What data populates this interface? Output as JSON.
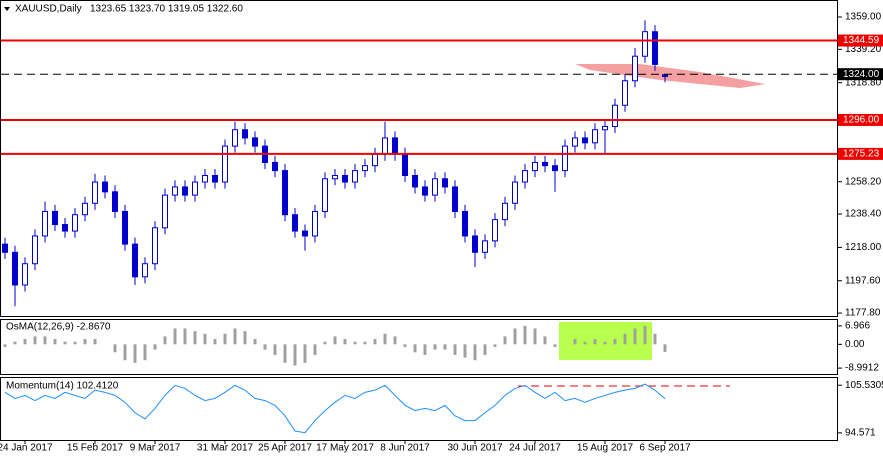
{
  "chart_data": [
    {
      "type": "candlestick",
      "title": "XAUUSD,Daily",
      "subtitle": "1323.65 1323.70 1319.05 1322.60",
      "color": "#0000cc",
      "categories": [
        null,
        null,
        "24 Jan 2017",
        null,
        null,
        null,
        null,
        null,
        null,
        "15 Feb 2017",
        null,
        null,
        null,
        null,
        null,
        "9 Mar 2017",
        null,
        null,
        null,
        null,
        null,
        null,
        "31 Mar 2017",
        null,
        null,
        null,
        null,
        null,
        "25 Apr 2017",
        null,
        null,
        null,
        null,
        null,
        "17 May 2017",
        null,
        null,
        null,
        null,
        null,
        "8 Jun 2017",
        null,
        null,
        null,
        null,
        null,
        null,
        "30 Jun 2017",
        null,
        null,
        null,
        null,
        null,
        "24 Jul 2017",
        null,
        null,
        null,
        null,
        null,
        null,
        "15 Aug 2017",
        null,
        null,
        null,
        null,
        null,
        "6 Sep 2017"
      ],
      "open": [
        1220,
        1215,
        1195,
        1208,
        1225,
        1240,
        1232,
        1228,
        1238,
        1245,
        1258,
        1252,
        1240,
        1220,
        1200,
        1208,
        1230,
        1250,
        1255,
        1250,
        1258,
        1262,
        1258,
        1280,
        1290,
        1285,
        1280,
        1270,
        1265,
        1238,
        1228,
        1225,
        1240,
        1260,
        1262,
        1258,
        1265,
        1268,
        1275,
        1285,
        1275,
        1262,
        1255,
        1250,
        1260,
        1255,
        1240,
        1225,
        1215,
        1222,
        1235,
        1245,
        1258,
        1265,
        1270,
        1268,
        1265,
        1280,
        1285,
        1282,
        1290,
        1292,
        1305,
        1320,
        1335,
        1350,
        1323.65
      ],
      "high": [
        1224,
        1219,
        1212,
        1229,
        1246,
        1244,
        1236,
        1242,
        1249,
        1263,
        1262,
        1256,
        1244,
        1224,
        1212,
        1234,
        1254,
        1259,
        1259,
        1262,
        1266,
        1266,
        1284,
        1295,
        1294,
        1289,
        1284,
        1274,
        1269,
        1242,
        1232,
        1244,
        1264,
        1266,
        1266,
        1269,
        1272,
        1279,
        1295,
        1289,
        1279,
        1266,
        1259,
        1264,
        1264,
        1259,
        1244,
        1229,
        1226,
        1239,
        1249,
        1262,
        1269,
        1274,
        1274,
        1272,
        1284,
        1289,
        1289,
        1294,
        1296,
        1309,
        1324,
        1340,
        1357,
        1354,
        1323.7
      ],
      "low": [
        1211,
        1182,
        1191,
        1204,
        1221,
        1228,
        1224,
        1224,
        1234,
        1241,
        1248,
        1236,
        1216,
        1195,
        1196,
        1204,
        1226,
        1246,
        1246,
        1246,
        1254,
        1254,
        1254,
        1276,
        1281,
        1276,
        1266,
        1261,
        1234,
        1224,
        1216,
        1221,
        1236,
        1256,
        1254,
        1254,
        1261,
        1264,
        1271,
        1271,
        1258,
        1251,
        1246,
        1246,
        1251,
        1236,
        1221,
        1206,
        1211,
        1218,
        1231,
        1241,
        1254,
        1261,
        1264,
        1252,
        1261,
        1276,
        1278,
        1278,
        1275,
        1288,
        1301,
        1316,
        1331,
        1326,
        1319.05
      ],
      "close": [
        1215,
        1195,
        1208,
        1225,
        1240,
        1232,
        1228,
        1238,
        1245,
        1258,
        1252,
        1240,
        1220,
        1200,
        1208,
        1230,
        1250,
        1255,
        1250,
        1258,
        1262,
        1258,
        1280,
        1290,
        1285,
        1280,
        1270,
        1265,
        1238,
        1228,
        1225,
        1240,
        1260,
        1262,
        1258,
        1265,
        1268,
        1275,
        1285,
        1275,
        1262,
        1255,
        1250,
        1260,
        1255,
        1240,
        1225,
        1215,
        1222,
        1235,
        1245,
        1258,
        1265,
        1270,
        1268,
        1265,
        1280,
        1285,
        1282,
        1290,
        1292,
        1305,
        1320,
        1335,
        1350,
        1330,
        1322.6
      ],
      "ylim": [
        1175.4,
        1368.8
      ],
      "yticks": [
        {
          "value": 1359,
          "label": "1359.00"
        },
        {
          "value": 1339.2,
          "label": "1339.20"
        },
        {
          "value": 1318.8,
          "label": "1318.80"
        },
        {
          "value": 1258.2,
          "label": "1258.20"
        },
        {
          "value": 1238.4,
          "label": "1238.40"
        },
        {
          "value": 1218,
          "label": "1218.00"
        },
        {
          "value": 1197.6,
          "label": "1197.60"
        },
        {
          "value": 1177.8,
          "label": "1177.80"
        }
      ],
      "levels": {
        "values": [
          1344.59,
          1324,
          1296,
          1275.23
        ],
        "value_labels": [
          "1344.59",
          "1324.00",
          "1296.00",
          "1275.23"
        ],
        "colors": [
          "#ee0000",
          "#000000",
          "#ee0000",
          "#ee0000"
        ]
      }
    },
    {
      "type": "bar",
      "title": "OsMA(12,26,9) -2.8670",
      "color": "#a0a0a0",
      "values": [
        -1,
        1,
        2,
        3,
        3,
        2,
        1,
        1,
        2,
        2,
        0,
        -3,
        -6,
        -7,
        -6,
        -2,
        3,
        6,
        6,
        5,
        4,
        2,
        4,
        6,
        5,
        2,
        -2,
        -4,
        -7,
        -8,
        -7,
        -4,
        1,
        3,
        2,
        1,
        1,
        2,
        4,
        3,
        -1,
        -3,
        -4,
        -2,
        -2,
        -4,
        -5,
        -6,
        -4,
        -1,
        3,
        6,
        7,
        6,
        3,
        -1,
        0,
        2,
        1,
        2,
        1,
        2,
        4,
        6,
        7,
        4,
        -2.867
      ],
      "ylim": [
        -11.6,
        9.2
      ],
      "yticks": [
        6.966,
        {
          "value": 0,
          "label": "0.00"
        },
        -8.9912
      ]
    },
    {
      "type": "line",
      "title": "Momentum(14) 102.4120",
      "color": "#1e90ff",
      "values": [
        103.9,
        102.5,
        103.2,
        102.0,
        103.2,
        102.5,
        103.9,
        103.2,
        102.5,
        104.4,
        103.9,
        103.2,
        101.6,
        99.2,
        97.8,
        100.2,
        103.2,
        105.5,
        104.8,
        103.2,
        102.0,
        102.5,
        103.9,
        105.5,
        104.4,
        102.5,
        102.0,
        100.9,
        98.5,
        95.0,
        94.6,
        97.4,
        99.7,
        101.6,
        103.2,
        102.5,
        103.9,
        104.4,
        105.5,
        103.2,
        100.9,
        99.7,
        100.2,
        99.7,
        100.9,
        98.5,
        97.4,
        97.4,
        99.2,
        100.9,
        103.2,
        104.8,
        105.5,
        103.9,
        102.5,
        103.9,
        102.0,
        102.5,
        101.6,
        102.5,
        103.2,
        103.9,
        104.4,
        104.8,
        105.8,
        104.4,
        102.412
      ],
      "ylim": [
        92.7,
        107.2
      ],
      "yticks": [
        105.5305,
        94.571
      ]
    }
  ]
}
